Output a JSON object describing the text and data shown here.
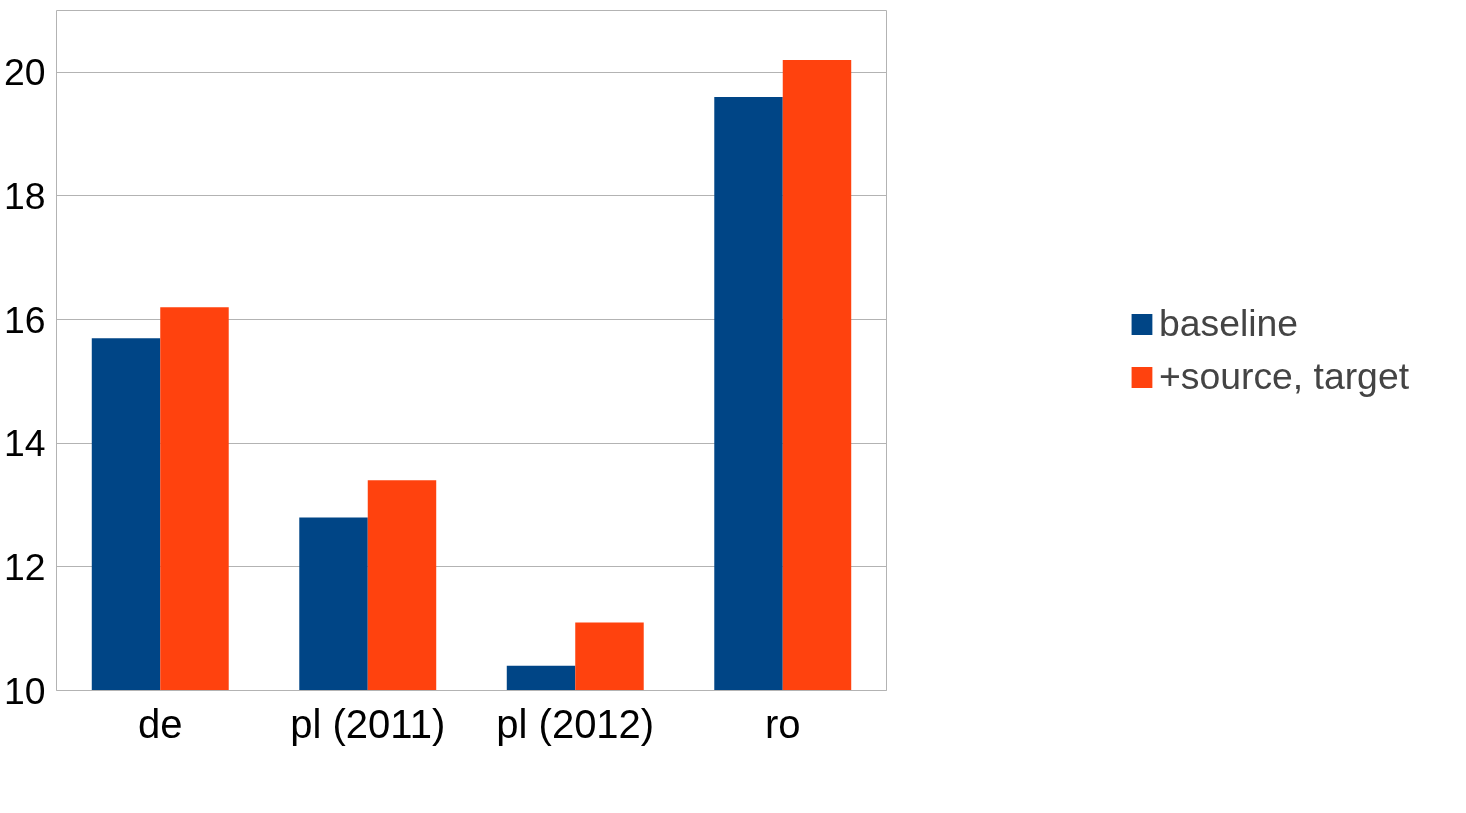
{
  "chart_data": {
    "type": "bar",
    "categories": [
      "de",
      "pl (2011)",
      "pl (2012)",
      "ro"
    ],
    "series": [
      {
        "name": "baseline",
        "color": "#004586",
        "values": [
          15.7,
          12.8,
          10.4,
          19.6
        ]
      },
      {
        "name": "+source, target",
        "color": "#ff420e",
        "values": [
          16.2,
          13.4,
          11.1,
          20.2
        ]
      }
    ],
    "ylim": [
      10,
      21
    ],
    "yticks": [
      10,
      12,
      14,
      16,
      18,
      20
    ],
    "grid": "y",
    "legend": "right"
  }
}
